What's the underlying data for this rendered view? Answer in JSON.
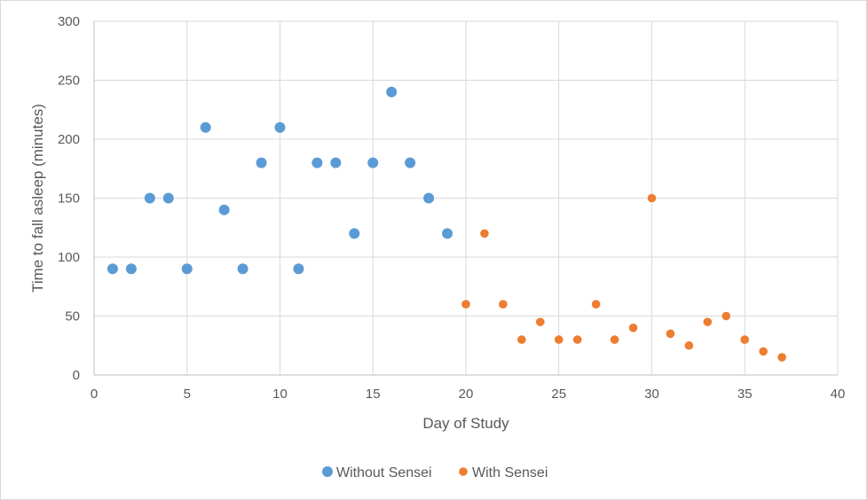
{
  "chart_data": {
    "type": "scatter",
    "title": "",
    "xlabel": "Day of Study",
    "ylabel": "Time to fall asleep (minutes)",
    "xlim": [
      0,
      40
    ],
    "ylim": [
      0,
      300
    ],
    "x_ticks": [
      0,
      5,
      10,
      15,
      20,
      25,
      30,
      35,
      40
    ],
    "y_ticks": [
      0,
      50,
      100,
      150,
      200,
      250,
      300
    ],
    "grid": true,
    "legend_position": "bottom",
    "series": [
      {
        "name": "Without Sensei",
        "color": "#5b9bd5",
        "x": [
          1,
          2,
          3,
          4,
          5,
          6,
          7,
          8,
          9,
          10,
          11,
          12,
          13,
          14,
          15,
          16,
          17,
          18,
          19
        ],
        "y": [
          90,
          90,
          150,
          150,
          90,
          210,
          140,
          90,
          180,
          210,
          90,
          180,
          180,
          120,
          180,
          240,
          180,
          150,
          120
        ]
      },
      {
        "name": "With Sensei",
        "color": "#ed7d31",
        "x": [
          20,
          21,
          22,
          23,
          24,
          25,
          26,
          27,
          28,
          29,
          30,
          31,
          32,
          33,
          34,
          35,
          36,
          37
        ],
        "y": [
          60,
          120,
          60,
          30,
          45,
          30,
          30,
          60,
          30,
          40,
          150,
          35,
          25,
          45,
          50,
          30,
          20,
          15
        ]
      }
    ]
  }
}
